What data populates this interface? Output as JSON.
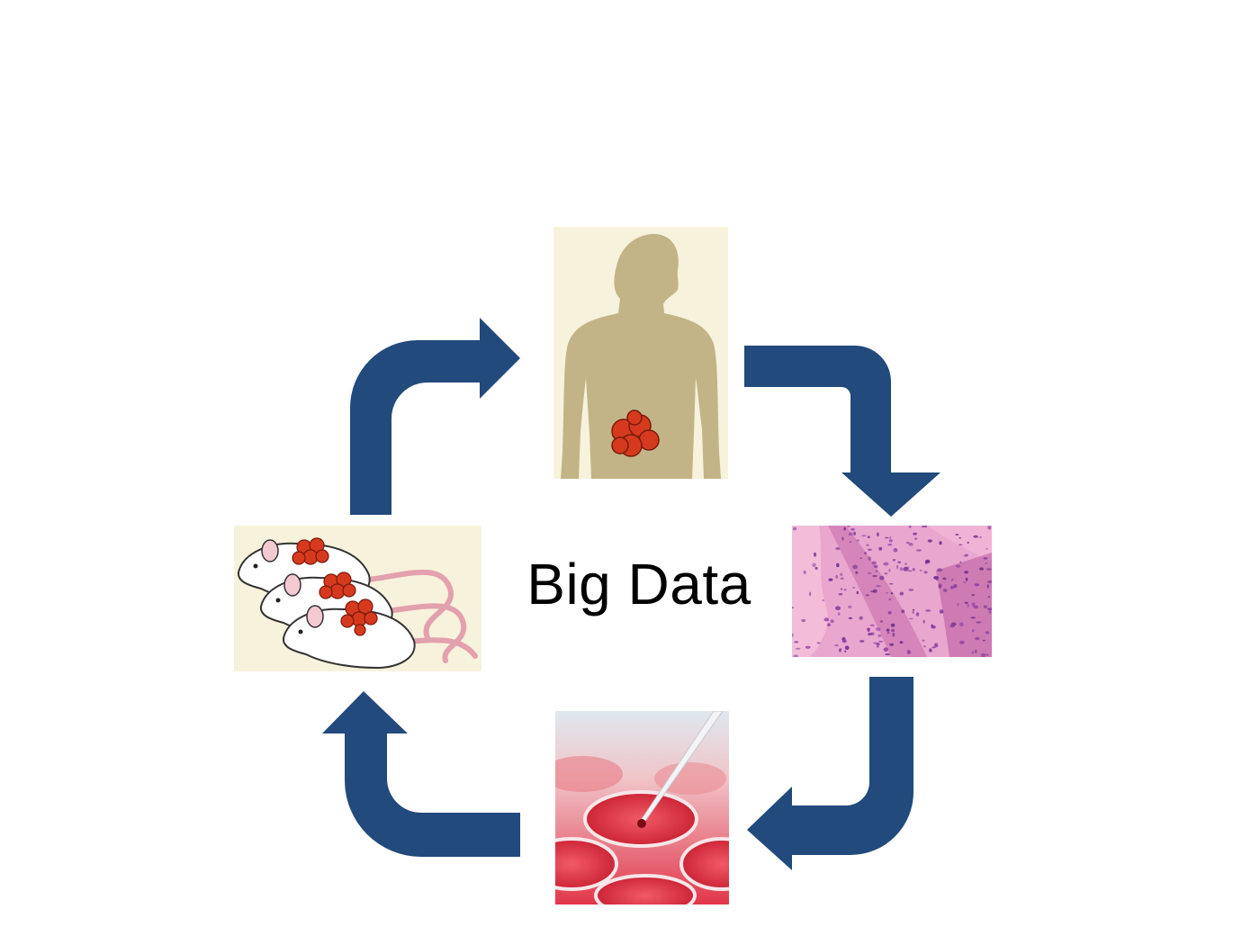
{
  "diagram": {
    "center_label": "Big Data",
    "arrow_color": "#224a7c",
    "nodes": [
      {
        "id": "patient",
        "icon": "human-silhouette-with-tumor-icon"
      },
      {
        "id": "tissue",
        "icon": "histology-tissue-slide-image"
      },
      {
        "id": "cell-culture",
        "icon": "petri-dish-pipette-image"
      },
      {
        "id": "mouse-model",
        "icon": "mice-with-tumors-icon"
      }
    ],
    "edges": [
      {
        "from": "patient",
        "to": "tissue"
      },
      {
        "from": "tissue",
        "to": "cell-culture"
      },
      {
        "from": "cell-culture",
        "to": "mouse-model"
      },
      {
        "from": "mouse-model",
        "to": "patient"
      }
    ],
    "colors": {
      "tumor": "#d63a1e",
      "silhouette": "#c2b487",
      "panel_cream": "#f7f2dc",
      "tissue_pink": "#e48fbf",
      "culture_red": "#e23b48"
    }
  }
}
